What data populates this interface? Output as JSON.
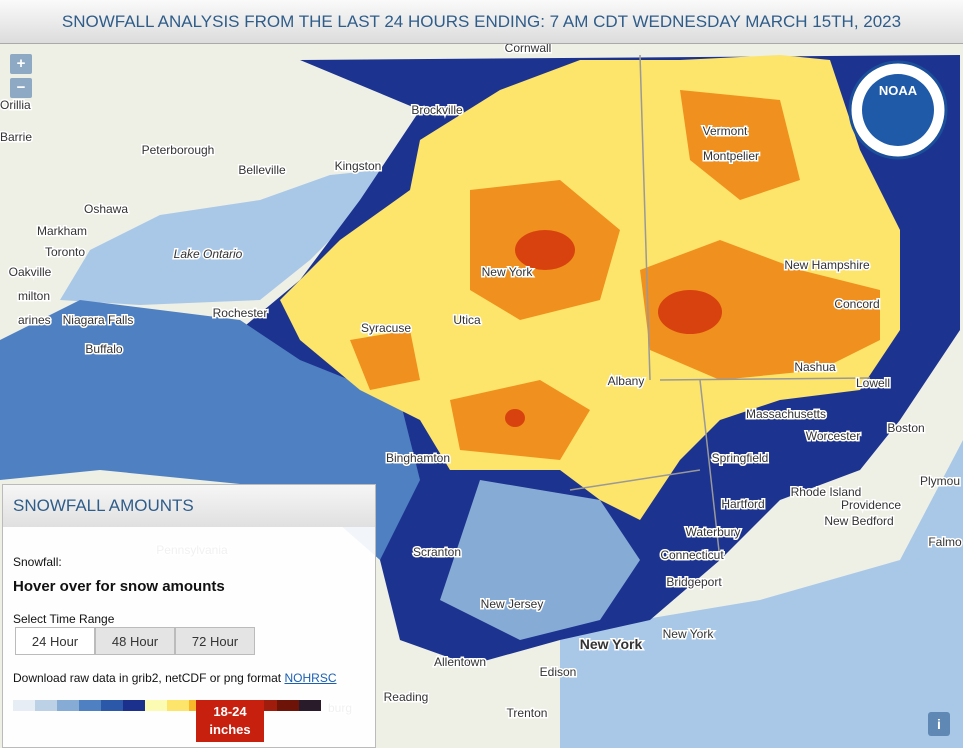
{
  "header": {
    "title": "SNOWFALL ANALYSIS FROM THE LAST 24 HOURS ENDING: 7 AM CDT WEDNESDAY MARCH 15TH, 2023"
  },
  "map": {
    "zoom_in": "+",
    "zoom_out": "−",
    "info": "i",
    "logo": "NOAA",
    "labels": [
      "Cornwall",
      "Orillia",
      "Barrie",
      "Brockville",
      "Peterborough",
      "Belleville",
      "Kingston",
      "Oshawa",
      "Markham",
      "Toronto",
      "Lake Ontario",
      "Oakville",
      "milton",
      "arines",
      "Niagara Falls",
      "Rochester",
      "Buffalo",
      "Syracuse",
      "Utica",
      "New York",
      "Vermont",
      "Montpelier",
      "New Hampshire",
      "Concord",
      "Albany",
      "Nashua",
      "Lowell",
      "Massachusetts",
      "Boston",
      "Worcester",
      "Springfield",
      "Binghamton",
      "Hartford",
      "Rhode Island",
      "Providence",
      "Plymou",
      "New Bedford",
      "Falmo",
      "Waterbury",
      "Connecticut",
      "Pennsylvania",
      "Scranton",
      "Bridgeport",
      "New Jersey",
      "New York",
      "New York",
      "Allentown",
      "Edison",
      "Reading",
      "burg",
      "Trenton"
    ]
  },
  "panel": {
    "title": "SNOWFALL AMOUNTS",
    "snowfall_label": "Snowfall:",
    "hover_text": "Hover over for snow amounts",
    "time_range_label": "Select Time Range",
    "buttons": [
      "24 Hour",
      "48 Hour",
      "72 Hour"
    ],
    "download_text": "Download raw data in grib2, netCDF or png format",
    "download_link": "NOHRSC",
    "legend_colors": [
      "#e6edf5",
      "#bcd0e6",
      "#86acd6",
      "#4f80c2",
      "#2c58aa",
      "#1b2f8c",
      "#fbfbb4",
      "#fde46a",
      "#f8b82a",
      "#f08a1e",
      "#d8420f",
      "#a01c0c",
      "#6e1308",
      "#2a1b2a"
    ],
    "active_range": "18-24",
    "active_unit": "inches"
  }
}
